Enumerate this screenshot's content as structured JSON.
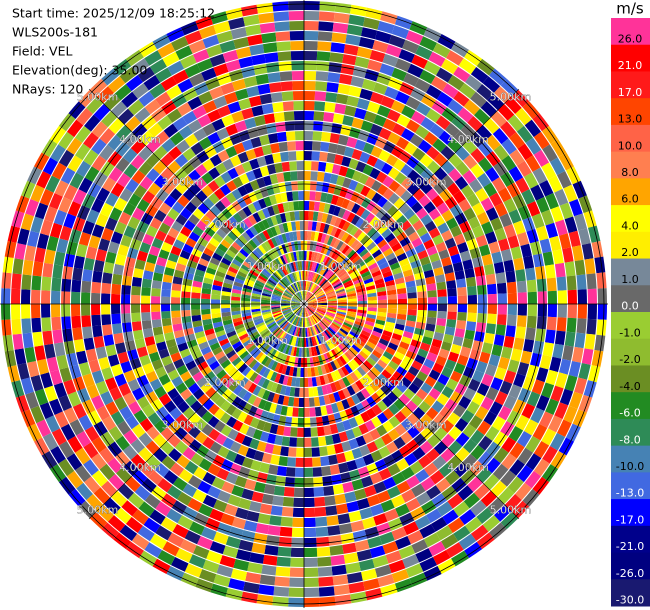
{
  "chart_data": {
    "type": "ppi",
    "info": [
      "Start time: 2025/12/09 18:25:12",
      "WLS200s-181",
      "Field: VEL",
      "Elevation(deg): 35.00",
      "NRays: 120"
    ],
    "range_labels": [
      "1.00km",
      "2.00km",
      "3.00km",
      "4.00km",
      "5.00km"
    ],
    "colorbar": {
      "unit": "m/s",
      "ticks": [
        {
          "value": 26,
          "label": "26.0"
        },
        {
          "value": 21,
          "label": "21.0"
        },
        {
          "value": 17,
          "label": "17.0"
        },
        {
          "value": 13,
          "label": "13.0"
        },
        {
          "value": 10,
          "label": "10.0"
        },
        {
          "value": 8,
          "label": "8.0"
        },
        {
          "value": 6,
          "label": "6.0"
        },
        {
          "value": 4,
          "label": "4.0"
        },
        {
          "value": 2,
          "label": "2.0"
        },
        {
          "value": 1,
          "label": "1.0"
        },
        {
          "value": 0,
          "label": "0.0"
        },
        {
          "value": -1,
          "label": "-1.0"
        },
        {
          "value": -2,
          "label": "-2.0"
        },
        {
          "value": -4,
          "label": "-4.0"
        },
        {
          "value": -6,
          "label": "-6.0"
        },
        {
          "value": -8,
          "label": "-8.0"
        },
        {
          "value": -10,
          "label": "-10.0"
        },
        {
          "value": -13,
          "label": "-13.0"
        },
        {
          "value": -17,
          "label": "-17.0"
        },
        {
          "value": -21,
          "label": "-21.0"
        },
        {
          "value": -26,
          "label": "-26.0"
        },
        {
          "value": -30,
          "label": "-30.0"
        }
      ],
      "colors": [
        "#ff3399",
        "#ff0000",
        "#ff1a1a",
        "#ff4500",
        "#ff6347",
        "#ff7f50",
        "#ffa500",
        "#ffff00",
        "#ffee00",
        "#778899",
        "#696969",
        "#9acd32",
        "#8fbc2f",
        "#6b8e23",
        "#228b22",
        "#2e8b57",
        "#4682b4",
        "#4169e1",
        "#0000ff",
        "#00008b",
        "#000080",
        "#191970"
      ]
    }
  }
}
